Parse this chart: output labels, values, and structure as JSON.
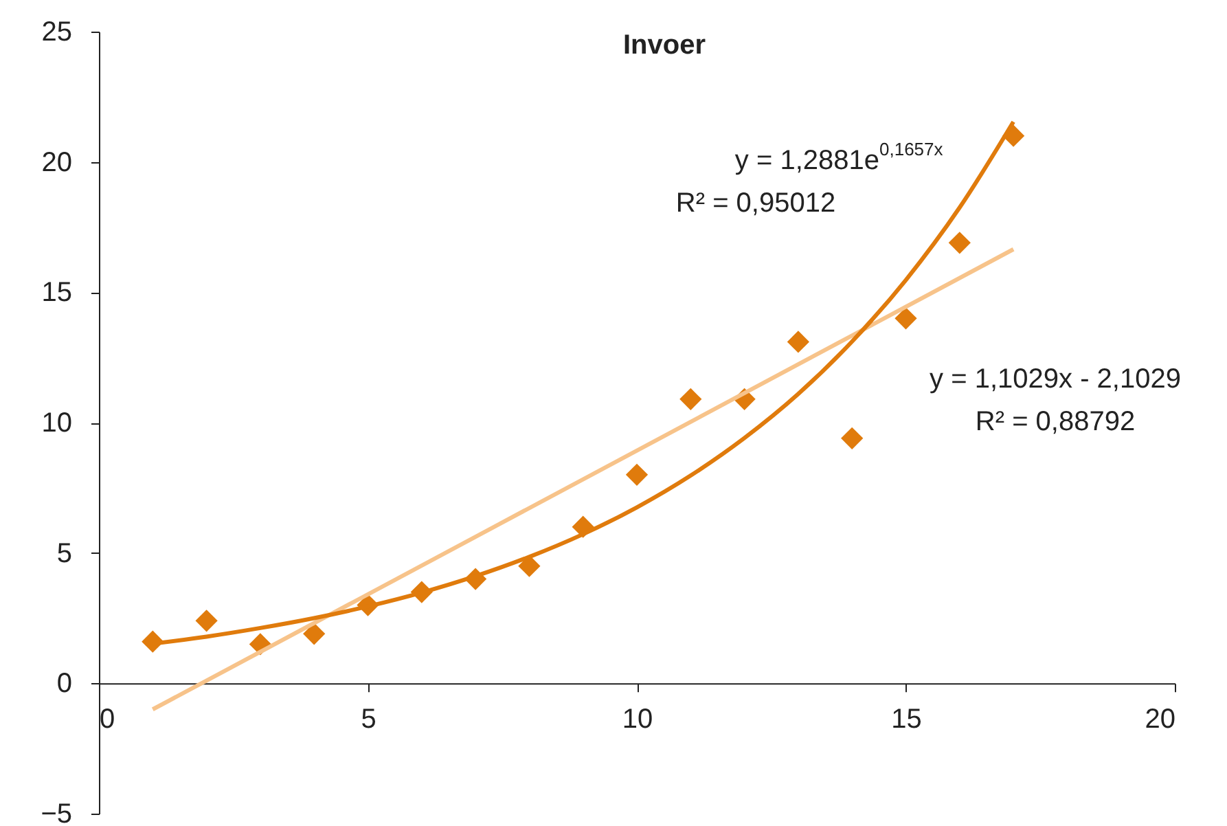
{
  "chart_data": {
    "type": "scatter",
    "title": "Invoer",
    "xlim": [
      0,
      20
    ],
    "xticks": [
      0,
      5,
      10,
      15,
      20
    ],
    "ylim": [
      -5,
      25
    ],
    "yticks": [
      -5,
      0,
      5,
      10,
      15,
      20,
      25
    ],
    "grid": false,
    "series": [
      {
        "marker": "diamond",
        "color": "#e07b0c",
        "x": [
          1,
          2,
          3,
          4,
          5,
          6,
          7,
          8,
          9,
          10,
          11,
          12,
          13,
          14,
          15,
          16,
          17
        ],
        "values": [
          1.6,
          2.4,
          1.5,
          1.9,
          3.0,
          3.5,
          4.0,
          4.5,
          6.0,
          8.0,
          10.9,
          10.9,
          13.1,
          9.4,
          14.0,
          16.9,
          21.0
        ]
      },
      {
        "type": "line",
        "line_style": "solid",
        "color": "#f7c38a",
        "x": [
          1,
          17
        ],
        "values": [
          -1.0,
          16.65
        ]
      },
      {
        "type": "line",
        "line_style": "solid",
        "color": "#e07b0c",
        "x": [
          1,
          2,
          3,
          4,
          5,
          6,
          7,
          8,
          9,
          10,
          11,
          12,
          13,
          14,
          15,
          16,
          17
        ],
        "values": [
          1.52,
          1.79,
          2.12,
          2.5,
          2.95,
          3.48,
          4.11,
          4.85,
          5.72,
          6.75,
          7.97,
          9.41,
          11.1,
          13.11,
          15.47,
          18.25,
          21.54
        ]
      }
    ],
    "annotations": [
      "y = 1,2881e$^{0,1657x}$",
      "R² = 0,95012",
      "y = 1,1029x - 2,1029",
      "R² = 0,88792"
    ]
  }
}
